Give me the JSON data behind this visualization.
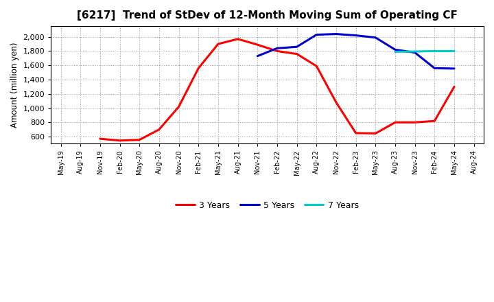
{
  "title": "[6217]  Trend of StDev of 12-Month Moving Sum of Operating CF",
  "ylabel": "Amount (million yen)",
  "background_color": "#ffffff",
  "plot_bg_color": "#ffffff",
  "grid_color": "#999999",
  "title_fontsize": 11,
  "tick_labels": [
    "May-19",
    "Aug-19",
    "Nov-19",
    "Feb-20",
    "May-20",
    "Aug-20",
    "Nov-20",
    "Feb-21",
    "May-21",
    "Aug-21",
    "Nov-21",
    "Feb-22",
    "May-22",
    "Aug-22",
    "Nov-22",
    "Feb-23",
    "May-23",
    "Aug-23",
    "Nov-23",
    "Feb-24",
    "May-24",
    "Aug-24"
  ],
  "series": {
    "3 Years": {
      "color": "#ff0000",
      "data": [
        [
          "May-19",
          null
        ],
        [
          "Aug-19",
          null
        ],
        [
          "Nov-19",
          570
        ],
        [
          "Feb-20",
          545
        ],
        [
          "May-20",
          555
        ],
        [
          "Aug-20",
          700
        ],
        [
          "Nov-20",
          1020
        ],
        [
          "Feb-21",
          1560
        ],
        [
          "May-21",
          1900
        ],
        [
          "Aug-21",
          1970
        ],
        [
          "Nov-21",
          1890
        ],
        [
          "Feb-22",
          1800
        ],
        [
          "May-22",
          1760
        ],
        [
          "Aug-22",
          1590
        ],
        [
          "Nov-22",
          1080
        ],
        [
          "Feb-23",
          650
        ],
        [
          "May-23",
          645
        ],
        [
          "Aug-23",
          800
        ],
        [
          "Nov-23",
          800
        ],
        [
          "Feb-24",
          820
        ],
        [
          "May-24",
          1300
        ],
        [
          "Aug-24",
          null
        ]
      ]
    },
    "5 Years": {
      "color": "#0000cc",
      "data": [
        [
          "May-19",
          null
        ],
        [
          "Aug-19",
          null
        ],
        [
          "Nov-19",
          null
        ],
        [
          "Feb-20",
          null
        ],
        [
          "May-20",
          null
        ],
        [
          "Aug-20",
          null
        ],
        [
          "Nov-20",
          null
        ],
        [
          "Feb-21",
          null
        ],
        [
          "May-21",
          null
        ],
        [
          "Aug-21",
          null
        ],
        [
          "Nov-21",
          1730
        ],
        [
          "Feb-22",
          1840
        ],
        [
          "May-22",
          1860
        ],
        [
          "Aug-22",
          2030
        ],
        [
          "Nov-22",
          2040
        ],
        [
          "Feb-23",
          2020
        ],
        [
          "May-23",
          1990
        ],
        [
          "Aug-23",
          1820
        ],
        [
          "Nov-23",
          1780
        ],
        [
          "Feb-24",
          1560
        ],
        [
          "May-24",
          1555
        ],
        [
          "Aug-24",
          null
        ]
      ]
    },
    "7 Years": {
      "color": "#00cccc",
      "data": [
        [
          "May-19",
          null
        ],
        [
          "Aug-19",
          null
        ],
        [
          "Nov-19",
          null
        ],
        [
          "Feb-20",
          null
        ],
        [
          "May-20",
          null
        ],
        [
          "Aug-20",
          null
        ],
        [
          "Nov-20",
          null
        ],
        [
          "Feb-21",
          null
        ],
        [
          "May-21",
          null
        ],
        [
          "Aug-21",
          null
        ],
        [
          "Nov-21",
          null
        ],
        [
          "Feb-22",
          null
        ],
        [
          "May-22",
          null
        ],
        [
          "Aug-22",
          null
        ],
        [
          "Nov-22",
          null
        ],
        [
          "Feb-23",
          null
        ],
        [
          "May-23",
          null
        ],
        [
          "Aug-23",
          1790
        ],
        [
          "Nov-23",
          1795
        ],
        [
          "Feb-24",
          1800
        ],
        [
          "May-24",
          1800
        ],
        [
          "Aug-24",
          null
        ]
      ]
    },
    "10 Years": {
      "color": "#00aa00",
      "data": [
        [
          "May-19",
          null
        ],
        [
          "Aug-19",
          null
        ],
        [
          "Nov-19",
          null
        ],
        [
          "Feb-20",
          null
        ],
        [
          "May-20",
          null
        ],
        [
          "Aug-20",
          null
        ],
        [
          "Nov-20",
          null
        ],
        [
          "Feb-21",
          null
        ],
        [
          "May-21",
          null
        ],
        [
          "Aug-21",
          null
        ],
        [
          "Nov-21",
          null
        ],
        [
          "Feb-22",
          null
        ],
        [
          "May-22",
          null
        ],
        [
          "Aug-22",
          null
        ],
        [
          "Nov-22",
          null
        ],
        [
          "Feb-23",
          null
        ],
        [
          "May-23",
          null
        ],
        [
          "Aug-23",
          null
        ],
        [
          "Nov-23",
          null
        ],
        [
          "Feb-24",
          null
        ],
        [
          "May-24",
          null
        ],
        [
          "Aug-24",
          null
        ]
      ]
    }
  },
  "ylim": [
    500,
    2150
  ],
  "yticks": [
    600,
    800,
    1000,
    1200,
    1400,
    1600,
    1800,
    2000
  ],
  "linewidth": 2.2
}
